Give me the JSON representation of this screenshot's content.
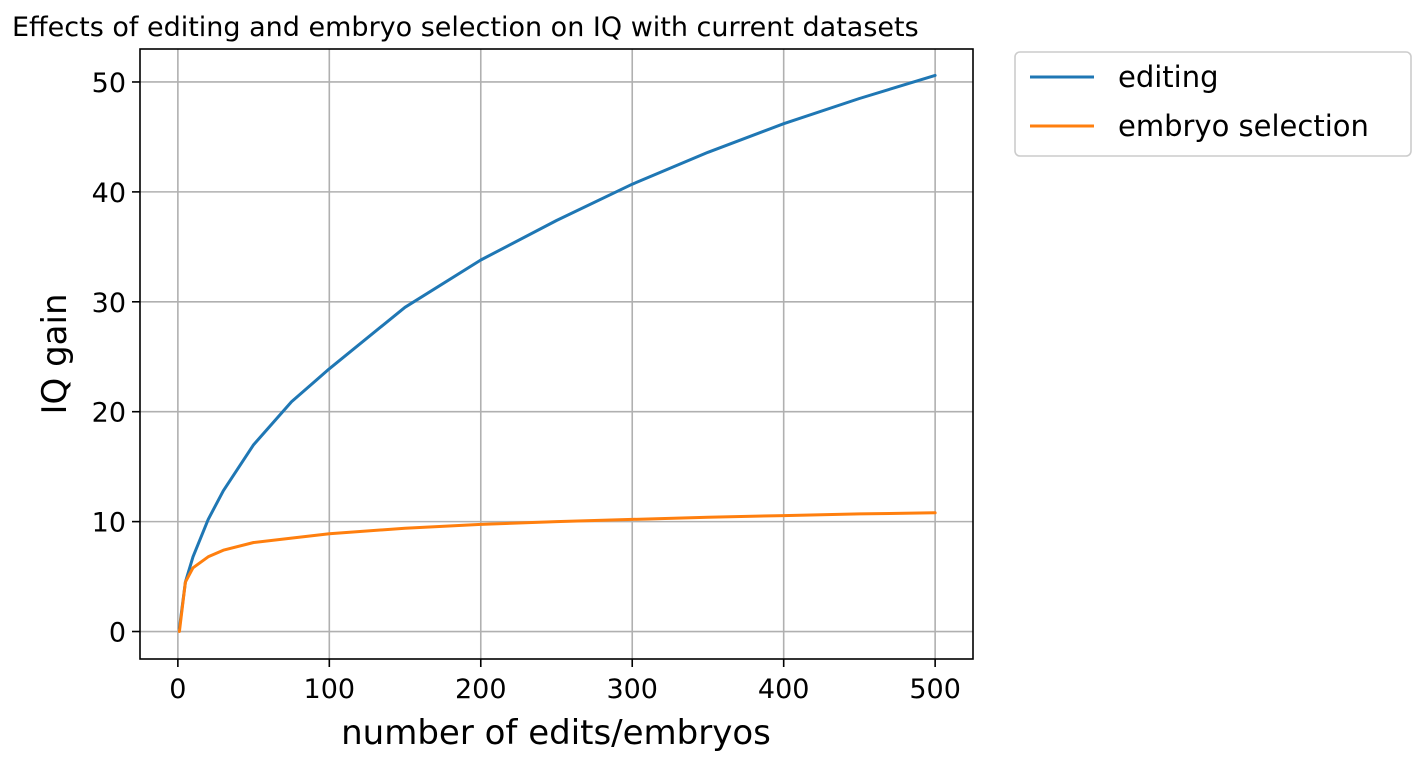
{
  "chart_data": {
    "type": "line",
    "title": "Effects of editing and embryo selection on IQ with current datasets",
    "xlabel": "number of edits/embryos",
    "ylabel": "IQ gain",
    "xlim": [
      -25,
      525
    ],
    "ylim": [
      -2.5,
      53
    ],
    "xticks": [
      0,
      100,
      200,
      300,
      400,
      500
    ],
    "yticks": [
      0,
      10,
      20,
      30,
      40,
      50
    ],
    "xtick_labels": [
      "0",
      "100",
      "200",
      "300",
      "400",
      "500"
    ],
    "ytick_labels": [
      "0",
      "10",
      "20",
      "30",
      "40",
      "50"
    ],
    "grid": true,
    "legend_position": "outside-top-right",
    "x": [
      1,
      5,
      10,
      20,
      30,
      50,
      75,
      100,
      150,
      200,
      250,
      300,
      350,
      400,
      450,
      500
    ],
    "series": [
      {
        "name": "editing",
        "color": "#1f77b4",
        "values": [
          0.3,
          4.5,
          6.8,
          10.2,
          12.8,
          17.0,
          20.9,
          23.9,
          29.5,
          33.8,
          37.4,
          40.7,
          43.6,
          46.2,
          48.5,
          50.6
        ]
      },
      {
        "name": "embryo selection",
        "color": "#ff7f0e",
        "values": [
          0.0,
          4.5,
          5.8,
          6.8,
          7.4,
          8.1,
          8.5,
          8.9,
          9.4,
          9.75,
          10.0,
          10.2,
          10.4,
          10.55,
          10.7,
          10.8
        ]
      }
    ]
  }
}
